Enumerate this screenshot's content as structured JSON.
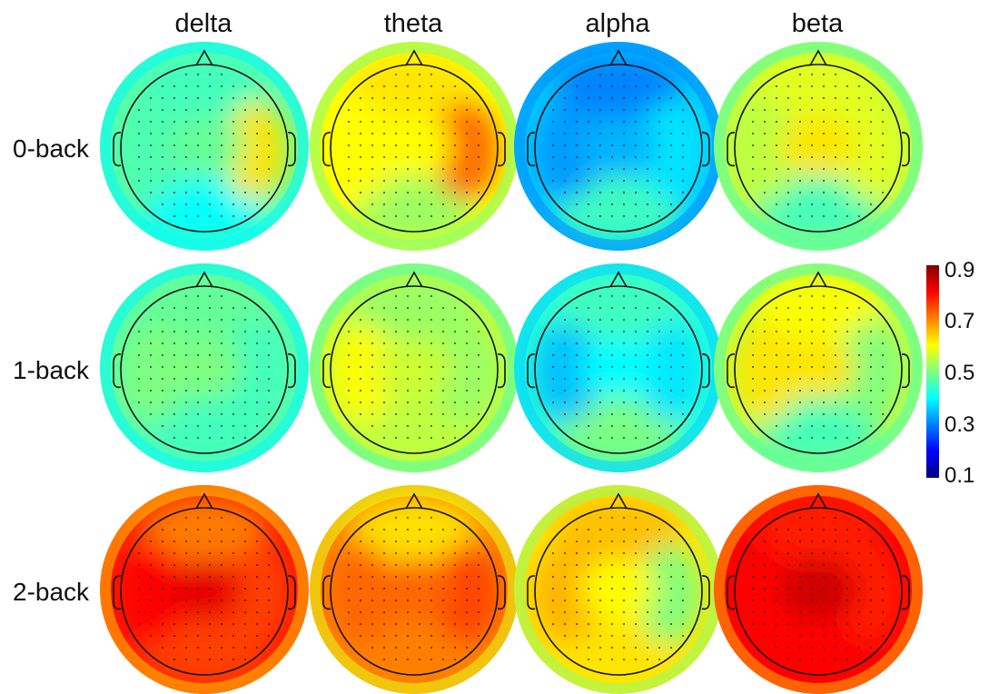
{
  "chart_data": {
    "type": "heatmap",
    "columns": [
      "delta",
      "theta",
      "alpha",
      "beta"
    ],
    "rows": [
      "0-back",
      "1-back",
      "2-back"
    ],
    "colorbar": {
      "ticks": [
        "0.9",
        "0.7",
        "0.5",
        "0.3",
        "0.1"
      ],
      "range": [
        0.1,
        0.9
      ],
      "colormap": "jet"
    },
    "maps": [
      {
        "row": "0-back",
        "column": "delta",
        "mean": 0.47,
        "anterior": 0.45,
        "left": 0.46,
        "right": 0.62,
        "posterior": 0.4,
        "center": 0.48
      },
      {
        "row": "0-back",
        "column": "theta",
        "mean": 0.6,
        "anterior": 0.62,
        "left": 0.6,
        "right": 0.72,
        "posterior": 0.52,
        "center": 0.6
      },
      {
        "row": "0-back",
        "column": "alpha",
        "mean": 0.36,
        "anterior": 0.3,
        "left": 0.32,
        "right": 0.38,
        "posterior": 0.45,
        "center": 0.34
      },
      {
        "row": "0-back",
        "column": "beta",
        "mean": 0.55,
        "anterior": 0.58,
        "left": 0.55,
        "right": 0.58,
        "posterior": 0.45,
        "center": 0.62
      },
      {
        "row": "1-back",
        "column": "delta",
        "mean": 0.47,
        "anterior": 0.48,
        "left": 0.5,
        "right": 0.45,
        "posterior": 0.45,
        "center": 0.5
      },
      {
        "row": "1-back",
        "column": "theta",
        "mean": 0.55,
        "anterior": 0.52,
        "left": 0.6,
        "right": 0.52,
        "posterior": 0.55,
        "center": 0.56
      },
      {
        "row": "1-back",
        "column": "alpha",
        "mean": 0.43,
        "anterior": 0.45,
        "left": 0.35,
        "right": 0.38,
        "posterior": 0.5,
        "center": 0.4
      },
      {
        "row": "1-back",
        "column": "beta",
        "mean": 0.55,
        "anterior": 0.6,
        "left": 0.62,
        "right": 0.5,
        "posterior": 0.45,
        "center": 0.62
      },
      {
        "row": "2-back",
        "column": "delta",
        "mean": 0.78,
        "anterior": 0.7,
        "left": 0.8,
        "right": 0.75,
        "posterior": 0.75,
        "center": 0.82
      },
      {
        "row": "2-back",
        "column": "theta",
        "mean": 0.7,
        "anterior": 0.62,
        "left": 0.72,
        "right": 0.75,
        "posterior": 0.7,
        "center": 0.72
      },
      {
        "row": "2-back",
        "column": "alpha",
        "mean": 0.62,
        "anterior": 0.65,
        "left": 0.66,
        "right": 0.5,
        "posterior": 0.62,
        "center": 0.6
      },
      {
        "row": "2-back",
        "column": "beta",
        "mean": 0.8,
        "anterior": 0.78,
        "left": 0.8,
        "right": 0.78,
        "posterior": 0.8,
        "center": 0.84
      }
    ]
  }
}
